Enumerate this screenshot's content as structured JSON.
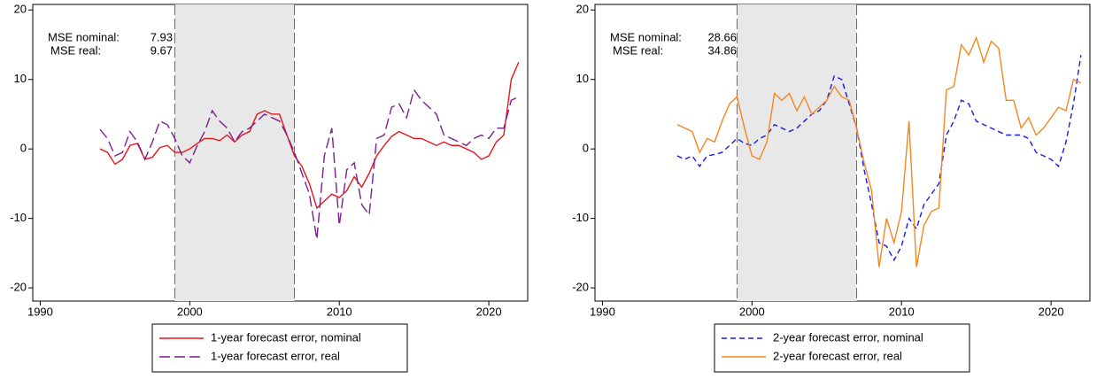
{
  "chart_data": [
    {
      "type": "line",
      "x": [
        1994,
        1994.5,
        1995,
        1995.5,
        1996,
        1996.5,
        1997,
        1997.5,
        1998,
        1998.5,
        1999,
        1999.5,
        2000,
        2000.5,
        2001,
        2001.5,
        2002,
        2002.5,
        2003,
        2003.5,
        2004,
        2004.5,
        2005,
        2005.5,
        2006,
        2006.5,
        2007,
        2007.5,
        2008,
        2008.5,
        2009,
        2009.5,
        2010,
        2010.5,
        2011,
        2011.5,
        2012,
        2012.5,
        2013,
        2013.5,
        2014,
        2014.5,
        2015,
        2015.5,
        2016,
        2016.5,
        2017,
        2017.5,
        2018,
        2018.5,
        2019,
        2019.5,
        2020,
        2020.5,
        2021,
        2021.5,
        2022
      ],
      "series": [
        {
          "name": "1-year forecast error, nominal",
          "color": "#e8161b",
          "dash": "none",
          "values": [
            0,
            -0.5,
            -2.2,
            -1.5,
            0.5,
            0.8,
            -1.5,
            -1.2,
            0.2,
            0.5,
            -0.5,
            -0.5,
            0,
            0.8,
            1.5,
            1.5,
            1.2,
            2,
            1,
            2,
            2.5,
            5,
            5.5,
            5,
            5,
            2,
            -1,
            -2.5,
            -5,
            -8.5,
            -7.5,
            -6.5,
            -7,
            -6,
            -4,
            -5.5,
            -3.5,
            -1,
            0.5,
            1.8,
            2.5,
            2,
            1.5,
            1.5,
            1,
            0.5,
            1,
            0.5,
            0.5,
            0,
            -0.5,
            -1.5,
            -1,
            1,
            2,
            10,
            12.5
          ]
        },
        {
          "name": "1-year forecast error, real",
          "color": "#7b1f8e",
          "dash": "12,5",
          "values": [
            2.8,
            1.5,
            -1,
            -0.5,
            2.5,
            1,
            -1.5,
            1,
            4,
            3.5,
            1.5,
            -1,
            -2,
            0.5,
            2.5,
            5.5,
            4,
            3,
            1,
            2.5,
            3,
            4,
            5,
            4.5,
            4,
            2,
            -0.5,
            -3.5,
            -6.5,
            -13,
            -1,
            3,
            -11,
            -3,
            -2,
            -8,
            -9.5,
            1.5,
            2,
            6,
            6.5,
            4.5,
            8.5,
            7,
            6,
            5,
            2,
            1.5,
            1,
            0.5,
            1.5,
            2,
            1.5,
            3,
            3,
            7,
            7.5
          ]
        }
      ],
      "xlim": [
        1989.5,
        2022.6
      ],
      "ylim": [
        -21.9,
        20.8
      ],
      "xticks": [
        1990,
        2000,
        2010,
        2020
      ],
      "yticks": [
        -20,
        -10,
        0,
        10,
        20
      ],
      "shade": [
        1999,
        2007
      ],
      "annotations": [
        {
          "label": "MSE nominal:",
          "value": 7.93
        },
        {
          "label": "MSE real:",
          "value": 9.67
        }
      ]
    },
    {
      "type": "line",
      "x": [
        1995,
        1995.5,
        1996,
        1996.5,
        1997,
        1997.5,
        1998,
        1998.5,
        1999,
        1999.5,
        2000,
        2000.5,
        2001,
        2001.5,
        2002,
        2002.5,
        2003,
        2003.5,
        2004,
        2004.5,
        2005,
        2005.5,
        2006,
        2006.5,
        2007,
        2007.5,
        2008,
        2008.5,
        2009,
        2009.5,
        2010,
        2010.5,
        2011,
        2011.5,
        2012,
        2012.5,
        2013,
        2013.5,
        2014,
        2014.5,
        2015,
        2015.5,
        2016,
        2016.5,
        2017,
        2017.5,
        2018,
        2018.5,
        2019,
        2019.5,
        2020,
        2020.5,
        2021,
        2021.5,
        2022
      ],
      "series": [
        {
          "name": "2-year forecast error, nominal",
          "color": "#1a1ae6",
          "dash": "6,4",
          "values": [
            -1,
            -1.5,
            -1,
            -2.5,
            -1,
            -0.8,
            -0.5,
            0.5,
            1.5,
            0.8,
            0.5,
            1.5,
            2,
            3.5,
            3,
            2.5,
            3,
            4,
            5,
            5.5,
            7,
            10.5,
            10,
            6.5,
            3,
            -3,
            -8,
            -13.5,
            -14,
            -16,
            -14,
            -10,
            -11.5,
            -8,
            -6.5,
            -5,
            2,
            4,
            7,
            6.5,
            4,
            3.5,
            3,
            2.5,
            2,
            2,
            2,
            1.5,
            -0.5,
            -1,
            -1.5,
            -2.5,
            1,
            6.5,
            13.5
          ]
        },
        {
          "name": "2-year forecast error, real",
          "color": "#f5861f",
          "dash": "none",
          "values": [
            3.5,
            3,
            2.5,
            -0.5,
            1.5,
            1,
            4,
            6.5,
            7.5,
            3,
            -1,
            -1.5,
            1,
            8,
            7,
            8,
            5.5,
            7.5,
            5,
            6,
            7,
            9,
            7.5,
            7,
            3,
            -2,
            -6,
            -17,
            -10,
            -13.5,
            -9,
            4,
            -17,
            -11,
            -9,
            -8.5,
            8.5,
            9,
            15,
            13.5,
            16,
            12.5,
            15.5,
            14.5,
            7,
            7,
            3,
            4.5,
            2,
            3,
            4.5,
            6,
            5.5,
            10,
            9.5
          ]
        }
      ],
      "xlim": [
        1989.5,
        2022.6
      ],
      "ylim": [
        -21.9,
        20.8
      ],
      "xticks": [
        1990,
        2000,
        2010,
        2020
      ],
      "yticks": [
        -20,
        -10,
        0,
        10,
        20
      ],
      "shade": [
        1999,
        2007
      ],
      "annotations": [
        {
          "label": "MSE nominal:",
          "value": 28.66
        },
        {
          "label": "MSE real:",
          "value": 34.86
        }
      ]
    }
  ]
}
